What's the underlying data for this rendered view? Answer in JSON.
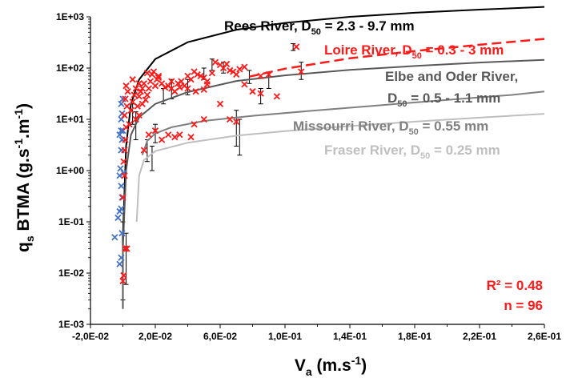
{
  "chart_data": {
    "type": "scatter",
    "xlabel_base": "V",
    "xlabel_sub": "a",
    "xlabel_rest": " (m.s",
    "xlabel_sup": "-1",
    "xlabel_end": ")",
    "ylabel_a": "q",
    "ylabel_a_sub": "s",
    "ylabel_b": " BTMA (g.s",
    "ylabel_b_sup": "-1",
    "ylabel_c": ".m",
    "ylabel_c_sup": "-1",
    "ylabel_d": ")",
    "xlim": [
      -0.02,
      0.26
    ],
    "ylim_log10": [
      -3,
      3
    ],
    "x_ticks": [
      -0.02,
      0.02,
      0.06,
      0.1,
      0.14,
      0.18,
      0.22,
      0.26
    ],
    "x_tick_labels": [
      "-2,0E-02",
      "2,0E-02",
      "6,0E-02",
      "1,0E-01",
      "1,4E-01",
      "1,8E-01",
      "2,2E-01",
      "2,6E-01"
    ],
    "y_ticks_log10": [
      -3,
      -2,
      -1,
      0,
      1,
      2,
      3
    ],
    "y_tick_labels": [
      "1E-03",
      "1E-02",
      "1E-01",
      "1E+00",
      "1E+01",
      "1E+02",
      "1E+03"
    ],
    "stats": {
      "r2": "R² = 0.48",
      "n": "n = 96"
    },
    "colors": {
      "red": "#ff1a1a",
      "blue": "#4472c4",
      "black": "#000000",
      "dark_gray": "#595959",
      "mid_gray": "#808080",
      "light_gray": "#bfbfbf"
    },
    "curves": [
      {
        "pre": "Rees River, D",
        "sub": "50",
        "post": " = 2.3 - 9.7 mm",
        "color": "#000000",
        "dash": false,
        "points": [
          [
            0.0,
            0.003
          ],
          [
            0.0,
            0.05
          ],
          [
            0.002,
            3
          ],
          [
            0.005,
            20
          ],
          [
            0.01,
            60
          ],
          [
            0.02,
            150
          ],
          [
            0.04,
            320
          ],
          [
            0.07,
            560
          ],
          [
            0.1,
            760
          ],
          [
            0.14,
            1000
          ],
          [
            0.18,
            1200
          ],
          [
            0.22,
            1380
          ],
          [
            0.26,
            1560
          ]
        ]
      },
      {
        "pre": "Loire River, D",
        "sub": "50",
        "post": " = 0.3 - 3 mm",
        "color": "#ff1a1a",
        "dash": true,
        "points": [
          [
            0.078,
            68
          ],
          [
            0.1,
            97
          ],
          [
            0.14,
            155
          ],
          [
            0.18,
            215
          ],
          [
            0.22,
            285
          ],
          [
            0.26,
            370
          ]
        ]
      },
      {
        "pre": "Elbe and Oder River,",
        "line2_pre": "D",
        "sub": "50",
        "post": " = 0.5 - 1.1 mm",
        "color": "#595959",
        "dash": false,
        "points": [
          [
            0.0,
            0.002
          ],
          [
            0.0,
            0.03
          ],
          [
            0.002,
            1
          ],
          [
            0.005,
            5
          ],
          [
            0.01,
            11
          ],
          [
            0.02,
            20
          ],
          [
            0.04,
            34
          ],
          [
            0.07,
            56
          ],
          [
            0.1,
            72
          ],
          [
            0.14,
            92
          ],
          [
            0.18,
            110
          ],
          [
            0.22,
            128
          ],
          [
            0.26,
            145
          ]
        ]
      },
      {
        "pre": "Missourri River, D",
        "sub": "50",
        "post": " = 0.55 mm",
        "color": "#808080",
        "dash": false,
        "points": [
          [
            0.012,
            2
          ],
          [
            0.015,
            3.8
          ],
          [
            0.02,
            5.3
          ],
          [
            0.03,
            7
          ],
          [
            0.05,
            9.3
          ],
          [
            0.08,
            11.7
          ],
          [
            0.12,
            15
          ],
          [
            0.16,
            19
          ],
          [
            0.2,
            24
          ],
          [
            0.24,
            30
          ],
          [
            0.26,
            35
          ]
        ]
      },
      {
        "pre": "Fraser River, D",
        "sub": "50",
        "post": " = 0.25 mm",
        "color": "#bfbfbf",
        "dash": false,
        "points": [
          [
            0.0085,
            0.1
          ],
          [
            0.01,
            0.8
          ],
          [
            0.013,
            1.6
          ],
          [
            0.02,
            2.4
          ],
          [
            0.04,
            3.5
          ],
          [
            0.07,
            4.8
          ],
          [
            0.1,
            5.9
          ],
          [
            0.14,
            7.4
          ],
          [
            0.18,
            9
          ],
          [
            0.22,
            10.8
          ],
          [
            0.26,
            12.8
          ]
        ]
      }
    ],
    "series": [
      {
        "marker": "x",
        "color": "#4472c4",
        "points": [
          [
            -0.005,
            0.05
          ],
          [
            -0.003,
            0.12
          ],
          [
            -0.002,
            0.16
          ],
          [
            -0.001,
            0.18
          ],
          [
            -0.002,
            0.015
          ],
          [
            -0.001,
            0.02
          ],
          [
            -0.0005,
            0.06
          ],
          [
            -0.001,
            0.5
          ],
          [
            -0.002,
            0.8
          ],
          [
            -0.0015,
            1.1
          ],
          [
            -0.001,
            2.5
          ],
          [
            -0.0005,
            4
          ],
          [
            -0.002,
            5
          ],
          [
            -0.001,
            6
          ],
          [
            0.0,
            6
          ],
          [
            -0.001,
            10
          ],
          [
            -0.0005,
            13
          ],
          [
            -0.001,
            20
          ],
          [
            0.0,
            25
          ],
          [
            -0.0005,
            0.3
          ],
          [
            0.0005,
            0.9
          ]
        ]
      },
      {
        "marker": "x",
        "color": "#ff1a1a",
        "points": [
          [
            0.0,
            0.007
          ],
          [
            0.0005,
            0.009
          ],
          [
            0.0015,
            0.03
          ],
          [
            0.0025,
            0.03
          ],
          [
            0.0,
            0.3
          ],
          [
            0.001,
            0.8
          ],
          [
            0.0005,
            1.5
          ],
          [
            0.001,
            2.5
          ],
          [
            0.0015,
            4
          ],
          [
            0.002,
            7
          ],
          [
            0.001,
            12
          ],
          [
            0.0025,
            18
          ],
          [
            0.0015,
            25
          ],
          [
            0.003,
            35
          ],
          [
            0.002,
            45
          ],
          [
            0.004,
            8
          ],
          [
            0.005,
            15
          ],
          [
            0.006,
            22
          ],
          [
            0.007,
            30
          ],
          [
            0.008,
            40
          ],
          [
            0.009,
            18
          ],
          [
            0.01,
            28
          ],
          [
            0.011,
            35
          ],
          [
            0.012,
            40
          ],
          [
            0.013,
            50
          ],
          [
            0.014,
            24
          ],
          [
            0.015,
            30
          ],
          [
            0.016,
            40
          ],
          [
            0.017,
            55
          ],
          [
            0.018,
            75
          ],
          [
            0.019,
            85
          ],
          [
            0.02,
            45
          ],
          [
            0.021,
            60
          ],
          [
            0.022,
            70
          ],
          [
            0.024,
            50
          ],
          [
            0.026,
            42
          ],
          [
            0.028,
            45
          ],
          [
            0.03,
            40
          ],
          [
            0.032,
            35
          ],
          [
            0.034,
            50
          ],
          [
            0.036,
            55
          ],
          [
            0.038,
            45
          ],
          [
            0.04,
            40
          ],
          [
            0.042,
            60
          ],
          [
            0.044,
            85
          ],
          [
            0.046,
            75
          ],
          [
            0.048,
            70
          ],
          [
            0.05,
            65
          ],
          [
            0.052,
            55
          ],
          [
            0.055,
            80
          ],
          [
            0.057,
            130
          ],
          [
            0.06,
            115
          ],
          [
            0.062,
            100
          ],
          [
            0.064,
            120
          ],
          [
            0.066,
            90
          ],
          [
            0.068,
            85
          ],
          [
            0.07,
            75
          ],
          [
            0.072,
            95
          ],
          [
            0.075,
            105
          ],
          [
            0.085,
            70
          ],
          [
            0.09,
            75
          ],
          [
            0.107,
            260
          ],
          [
            0.11,
            85
          ],
          [
            0.01,
            12
          ],
          [
            0.012,
            20
          ],
          [
            0.013,
            2.5
          ],
          [
            0.016,
            5
          ],
          [
            0.02,
            6
          ],
          [
            0.024,
            4
          ],
          [
            0.028,
            5
          ],
          [
            0.032,
            4.5
          ],
          [
            0.035,
            5
          ],
          [
            0.042,
            4.5
          ],
          [
            0.044,
            8
          ],
          [
            0.05,
            10
          ],
          [
            0.06,
            20
          ],
          [
            0.066,
            10
          ],
          [
            0.07,
            9
          ],
          [
            0.08,
            35
          ],
          [
            0.085,
            32
          ],
          [
            0.006,
            60
          ],
          [
            0.01,
            50
          ],
          [
            0.015,
            80
          ],
          [
            0.022,
            65
          ],
          [
            0.03,
            55
          ],
          [
            0.052,
            48
          ],
          [
            0.075,
            48
          ],
          [
            0.095,
            28
          ],
          [
            0.035,
            42
          ],
          [
            0.04,
            70
          ],
          [
            0.045,
            35
          ],
          [
            0.05,
            38
          ],
          [
            0.008,
            10
          ]
        ]
      }
    ],
    "error_bars": [
      {
        "x": 0.0,
        "lo": 0.003,
        "hi": 0.1
      },
      {
        "x": 0.002,
        "lo": 0.006,
        "hi": 0.06
      },
      {
        "x": 0.015,
        "lo": 1.5,
        "hi": 4
      },
      {
        "x": 0.018,
        "lo": 1.0,
        "hi": 3
      },
      {
        "x": 0.02,
        "lo": 3.5,
        "hi": 8
      },
      {
        "x": 0.025,
        "lo": 20,
        "hi": 40
      },
      {
        "x": 0.03,
        "lo": 25,
        "hi": 60
      },
      {
        "x": 0.04,
        "lo": 30,
        "hi": 60
      },
      {
        "x": 0.05,
        "lo": 60,
        "hi": 100
      },
      {
        "x": 0.055,
        "lo": 90,
        "hi": 150
      },
      {
        "x": 0.062,
        "lo": 80,
        "hi": 130
      },
      {
        "x": 0.07,
        "lo": 3,
        "hi": 15
      },
      {
        "x": 0.072,
        "lo": 2,
        "hi": 10
      },
      {
        "x": 0.078,
        "lo": 50,
        "hi": 90
      },
      {
        "x": 0.085,
        "lo": 20,
        "hi": 40
      },
      {
        "x": 0.09,
        "lo": 40,
        "hi": 80
      },
      {
        "x": 0.105,
        "lo": 220,
        "hi": 300
      },
      {
        "x": 0.11,
        "lo": 60,
        "hi": 130
      },
      {
        "x": 0.006,
        "lo": 8,
        "hi": 20
      },
      {
        "x": 0.008,
        "lo": 4,
        "hi": 14
      }
    ]
  }
}
